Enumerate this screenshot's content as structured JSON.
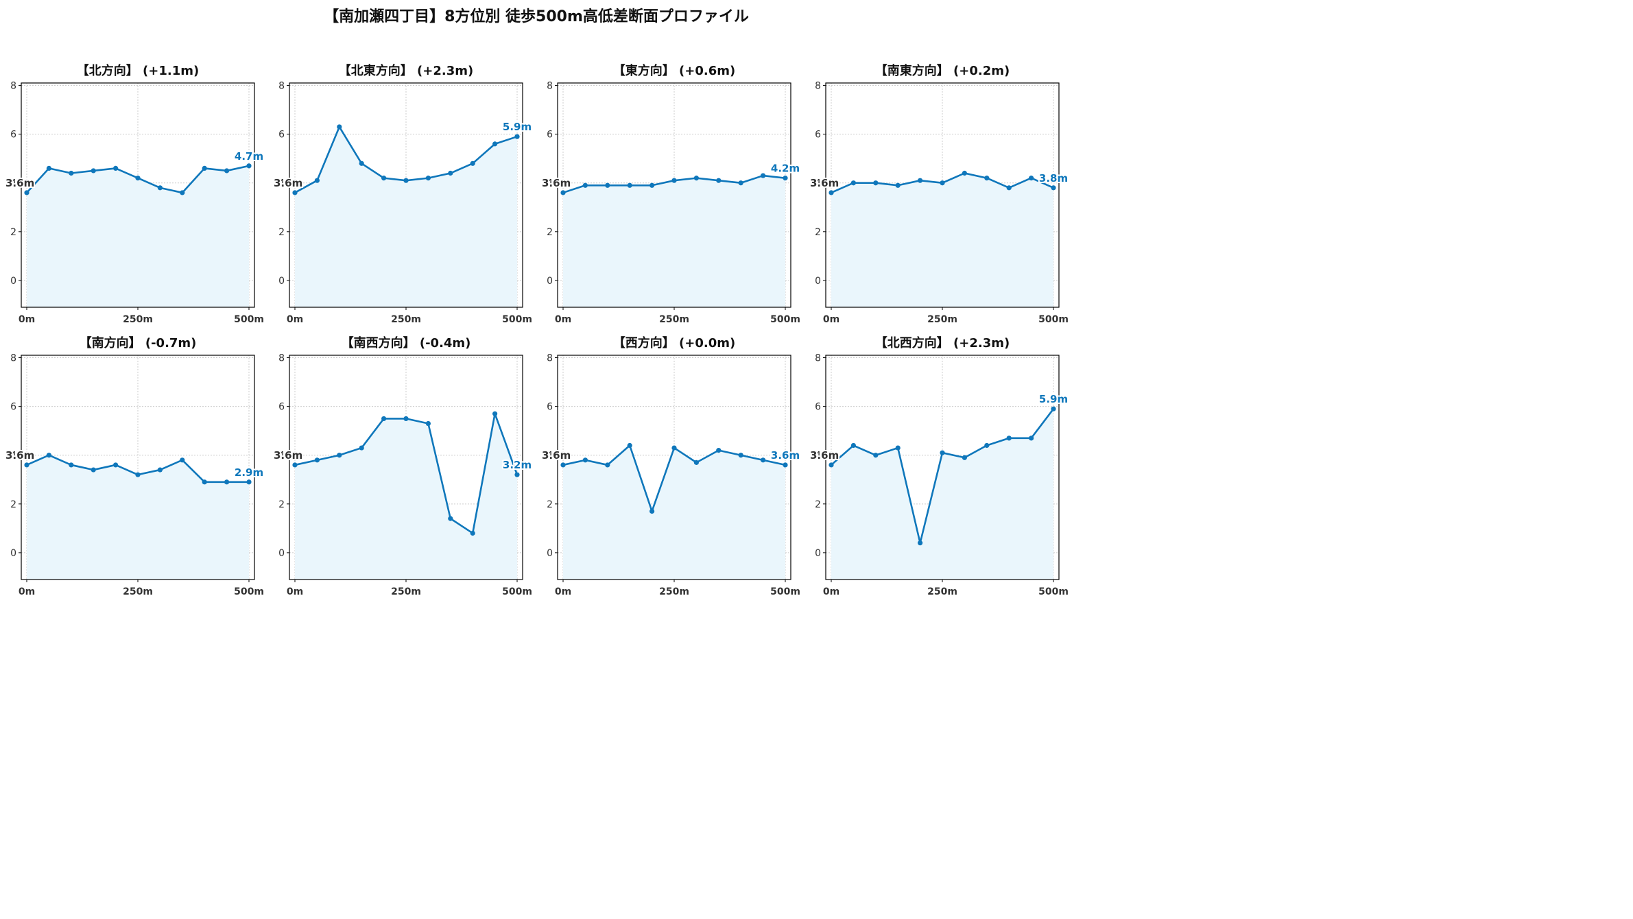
{
  "title": "【南加瀬四丁目】8方位別 徒歩500m高低差断面プロファイル",
  "colors": {
    "line": "#0f77bb",
    "fill": "#eaf6fc",
    "grid": "#cccccc",
    "start_label": "#333333"
  },
  "chart_data": [
    {
      "type": "area",
      "title": "【北方向】 (+1.1m)",
      "x": [
        0,
        50,
        100,
        150,
        200,
        250,
        300,
        350,
        400,
        450,
        500
      ],
      "y": [
        3.6,
        4.6,
        4.4,
        4.5,
        4.6,
        4.2,
        3.8,
        3.6,
        4.6,
        4.5,
        4.7
      ],
      "start_label": "3.6m",
      "end_label": "4.7m",
      "xticks": [
        "0m",
        "250m",
        "500m"
      ],
      "yticks": [
        "0",
        "2",
        "4",
        "6",
        "8"
      ],
      "ylim": [
        -1.1,
        8.1
      ],
      "grid": true
    },
    {
      "type": "area",
      "title": "【北東方向】 (+2.3m)",
      "x": [
        0,
        50,
        100,
        150,
        200,
        250,
        300,
        350,
        400,
        450,
        500
      ],
      "y": [
        3.6,
        4.1,
        6.3,
        4.8,
        4.2,
        4.1,
        4.2,
        4.4,
        4.8,
        5.6,
        5.9
      ],
      "start_label": "3.6m",
      "end_label": "5.9m",
      "xticks": [
        "0m",
        "250m",
        "500m"
      ],
      "yticks": [
        "0",
        "2",
        "4",
        "6",
        "8"
      ],
      "ylim": [
        -1.1,
        8.1
      ],
      "grid": true
    },
    {
      "type": "area",
      "title": "【東方向】 (+0.6m)",
      "x": [
        0,
        50,
        100,
        150,
        200,
        250,
        300,
        350,
        400,
        450,
        500
      ],
      "y": [
        3.6,
        3.9,
        3.9,
        3.9,
        3.9,
        4.1,
        4.2,
        4.1,
        4.0,
        4.3,
        4.2
      ],
      "start_label": "3.6m",
      "end_label": "4.2m",
      "xticks": [
        "0m",
        "250m",
        "500m"
      ],
      "yticks": [
        "0",
        "2",
        "4",
        "6",
        "8"
      ],
      "ylim": [
        -1.1,
        8.1
      ],
      "grid": true
    },
    {
      "type": "area",
      "title": "【南東方向】 (+0.2m)",
      "x": [
        0,
        50,
        100,
        150,
        200,
        250,
        300,
        350,
        400,
        450,
        500
      ],
      "y": [
        3.6,
        4.0,
        4.0,
        3.9,
        4.1,
        4.0,
        4.4,
        4.2,
        3.8,
        4.2,
        3.8
      ],
      "start_label": "3.6m",
      "end_label": "3.8m",
      "xticks": [
        "0m",
        "250m",
        "500m"
      ],
      "yticks": [
        "0",
        "2",
        "4",
        "6",
        "8"
      ],
      "ylim": [
        -1.1,
        8.1
      ],
      "grid": true
    },
    {
      "type": "area",
      "title": "【南方向】 (-0.7m)",
      "x": [
        0,
        50,
        100,
        150,
        200,
        250,
        300,
        350,
        400,
        450,
        500
      ],
      "y": [
        3.6,
        4.0,
        3.6,
        3.4,
        3.6,
        3.2,
        3.4,
        3.8,
        2.9,
        2.9,
        2.9
      ],
      "start_label": "3.6m",
      "end_label": "2.9m",
      "xticks": [
        "0m",
        "250m",
        "500m"
      ],
      "yticks": [
        "0",
        "2",
        "4",
        "6",
        "8"
      ],
      "ylim": [
        -1.1,
        8.1
      ],
      "grid": true
    },
    {
      "type": "area",
      "title": "【南西方向】 (-0.4m)",
      "x": [
        0,
        50,
        100,
        150,
        200,
        250,
        300,
        350,
        400,
        450,
        500
      ],
      "y": [
        3.6,
        3.8,
        4.0,
        4.3,
        5.5,
        5.5,
        5.3,
        1.4,
        0.8,
        5.7,
        3.2
      ],
      "start_label": "3.6m",
      "end_label": "3.2m",
      "xticks": [
        "0m",
        "250m",
        "500m"
      ],
      "yticks": [
        "0",
        "2",
        "4",
        "6",
        "8"
      ],
      "ylim": [
        -1.1,
        8.1
      ],
      "grid": true
    },
    {
      "type": "area",
      "title": "【西方向】 (+0.0m)",
      "x": [
        0,
        50,
        100,
        150,
        200,
        250,
        300,
        350,
        400,
        450,
        500
      ],
      "y": [
        3.6,
        3.8,
        3.6,
        4.4,
        1.7,
        4.3,
        3.7,
        4.2,
        4.0,
        3.8,
        3.6
      ],
      "start_label": "3.6m",
      "end_label": "3.6m",
      "xticks": [
        "0m",
        "250m",
        "500m"
      ],
      "yticks": [
        "0",
        "2",
        "4",
        "6",
        "8"
      ],
      "ylim": [
        -1.1,
        8.1
      ],
      "grid": true
    },
    {
      "type": "area",
      "title": "【北西方向】 (+2.3m)",
      "x": [
        0,
        50,
        100,
        150,
        200,
        250,
        300,
        350,
        400,
        450,
        500
      ],
      "y": [
        3.6,
        4.4,
        4.0,
        4.3,
        0.4,
        4.1,
        3.9,
        4.4,
        4.7,
        4.7,
        5.9
      ],
      "start_label": "3.6m",
      "end_label": "5.9m",
      "xticks": [
        "0m",
        "250m",
        "500m"
      ],
      "yticks": [
        "0",
        "2",
        "4",
        "6",
        "8"
      ],
      "ylim": [
        -1.1,
        8.1
      ],
      "grid": true
    }
  ]
}
